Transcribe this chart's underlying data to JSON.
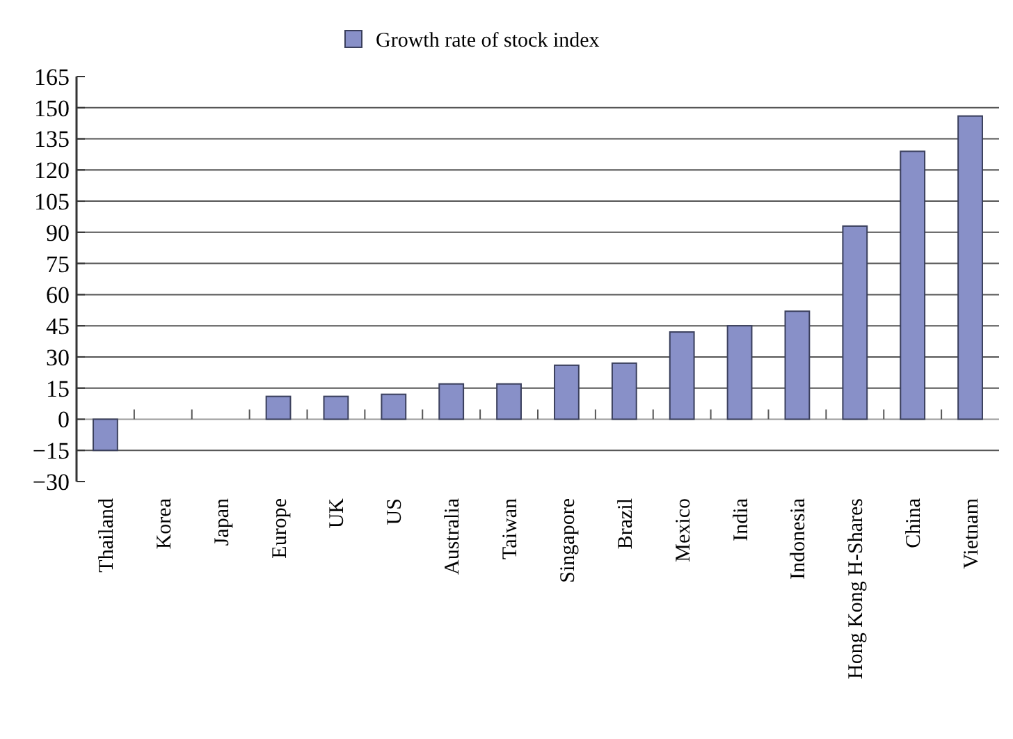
{
  "chart_data": {
    "type": "bar",
    "categories": [
      "Thailand",
      "Korea",
      "Japan",
      "Europe",
      "UK",
      "US",
      "Australia",
      "Taiwan",
      "Singapore",
      "Brazil",
      "Mexico",
      "India",
      "Indonesia",
      "Hong Kong H-Shares",
      "China",
      "Vietnam"
    ],
    "series": [
      {
        "name": "Growth rate of stock index",
        "color": "#8890c8",
        "values": [
          -15,
          0,
          0,
          11,
          11,
          12,
          17,
          17,
          26,
          27,
          42,
          45,
          52,
          93,
          129,
          146
        ]
      }
    ],
    "ylim": [
      -30,
      165
    ],
    "yticks": [
      -30,
      -15,
      0,
      15,
      30,
      45,
      60,
      75,
      90,
      105,
      120,
      135,
      150,
      165
    ],
    "grid": "y",
    "legend": "top"
  }
}
